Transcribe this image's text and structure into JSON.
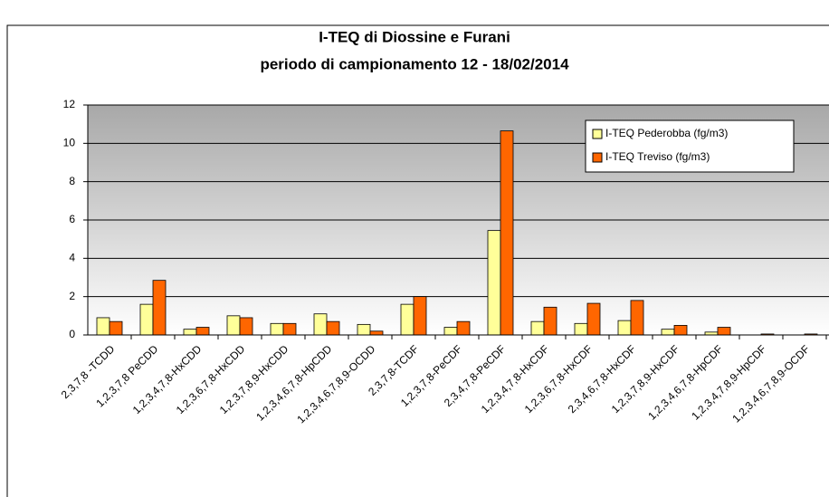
{
  "chart_data": {
    "type": "bar",
    "title": "I-TEQ di Diossine e Furani",
    "subtitle": "periodo di campionamento 12 - 18/02/2014",
    "categories": [
      "2,3,7,8 -TCDD",
      "1,2,3,7,8 PeCDD",
      "1,2,3,4,7,8-HxCDD",
      "1,2,3,6,7,8-HxCDD",
      "1,2,3,7,8,9-HxCDD",
      "1,2,3,4,6,7,8-HpCDD",
      "1,2,3,4,6,7,8,9-OCDD",
      "2,3,7,8-TCDF",
      "1,2,3,7,8-PeCDF",
      "2,3,4,7,8-PeCDF",
      "1,2,3,4,7,8-HxCDF",
      "1,2,3,6,7,8-HxCDF",
      "2,3,4,6,7,8-HxCDF",
      "1,2,3,7,8,9-HxCDF",
      "1,2,3,4,6,7,8-HpCDF",
      "1,2,3,4,7,8,9-HpCDF",
      "1,2,3,4,6,7,8,9-OCDF"
    ],
    "series": [
      {
        "name": "I-TEQ Pederobba (fg/m3)",
        "color": "#ffff99",
        "values": [
          0.9,
          1.6,
          0.3,
          1.0,
          0.6,
          1.1,
          0.55,
          1.6,
          0.4,
          5.45,
          0.7,
          0.6,
          0.75,
          0.3,
          0.15,
          0,
          0
        ]
      },
      {
        "name": "I-TEQ Treviso (fg/m3)",
        "color": "#ff6600",
        "values": [
          0.7,
          2.85,
          0.4,
          0.9,
          0.6,
          0.7,
          0.2,
          2.0,
          0.7,
          10.65,
          1.45,
          1.65,
          1.8,
          0.5,
          0.4,
          0.05,
          0.05
        ]
      }
    ],
    "ylim": [
      0,
      12
    ],
    "yticks": [
      0,
      2,
      4,
      6,
      8,
      10,
      12
    ],
    "grid": true,
    "legend": "top-right"
  }
}
